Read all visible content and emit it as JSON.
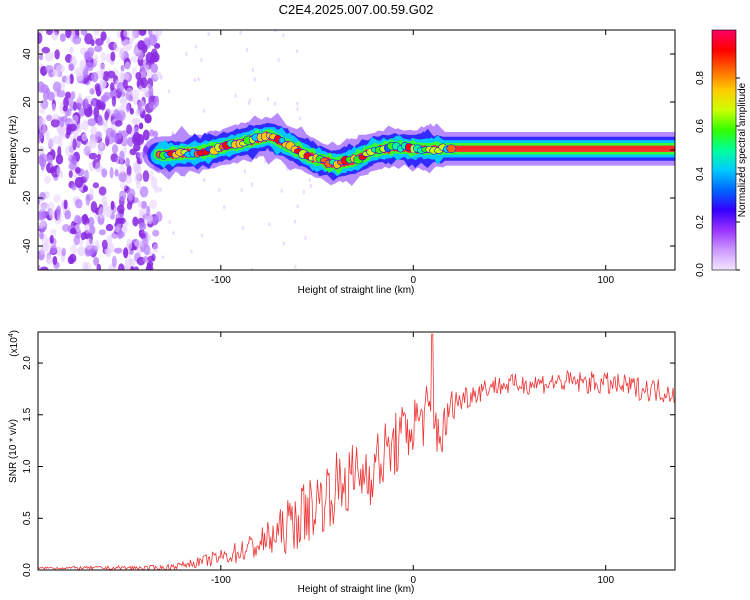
{
  "figure_title": "C2E4.2025.007.00.59.G02",
  "chart_data": [
    {
      "type": "heatmap",
      "name": "spectrogram",
      "xlabel": "Height of straight line (km)",
      "ylabel": "Frequency (Hz)",
      "xlim": [
        -195,
        136
      ],
      "ylim": [
        -50,
        50
      ],
      "x_ticks": [
        -100,
        0,
        100
      ],
      "y_ticks": [
        -40,
        -20,
        0,
        20,
        40
      ],
      "noise_region_x": [
        -195,
        -132
      ],
      "signal_region_x": [
        -132,
        136
      ],
      "ridge": {
        "x": [
          -132,
          -120,
          -110,
          -100,
          -90,
          -80,
          -75,
          -70,
          -65,
          -60,
          -55,
          -50,
          -45,
          -40,
          -35,
          -30,
          -25,
          -20,
          -15,
          -10,
          -5,
          0,
          10,
          20,
          50,
          100,
          136
        ],
        "y": [
          -2,
          -1.5,
          -1,
          1,
          3,
          5,
          6,
          4,
          2,
          0,
          -2,
          -4,
          -5,
          -6,
          -5,
          -4,
          -2,
          0,
          0.5,
          1,
          1,
          0.5,
          0.5,
          0.5,
          0.5,
          0.5,
          0.5
        ]
      },
      "colorbar": {
        "label": "Normalized spectral amplitude",
        "ticks": [
          0.0,
          0.2,
          0.4,
          0.6,
          0.8
        ],
        "range": [
          0,
          1
        ],
        "colormap": [
          "#f2e6ff",
          "#cc99ff",
          "#9933ff",
          "#3300ff",
          "#0066ff",
          "#00ccff",
          "#00ff99",
          "#33ff00",
          "#ccff00",
          "#ffcc00",
          "#ff6600",
          "#ff0000",
          "#ff0066"
        ]
      }
    },
    {
      "type": "line",
      "name": "snr",
      "xlabel": "Height of straight line (km)",
      "ylabel": "SNR (10 * v/v)",
      "y_scale_label": "(x10",
      "y_scale_exponent": "4",
      "xlim": [
        -195,
        136
      ],
      "ylim": [
        0,
        2.3
      ],
      "x_ticks": [
        -100,
        0,
        100
      ],
      "y_ticks": [
        "0.0",
        "0.5",
        "1.0",
        "1.5",
        "2.0"
      ],
      "color": "#ee3333",
      "envelope": {
        "x": [
          -195,
          -130,
          -120,
          -110,
          -100,
          -90,
          -80,
          -70,
          -60,
          -50,
          -40,
          -30,
          -20,
          -10,
          0,
          5,
          10,
          15,
          20,
          30,
          40,
          60,
          80,
          100,
          120,
          136
        ],
        "y": [
          0.02,
          0.02,
          0.05,
          0.08,
          0.12,
          0.18,
          0.25,
          0.35,
          0.5,
          0.65,
          0.8,
          0.9,
          1.0,
          1.2,
          1.4,
          1.5,
          1.45,
          1.3,
          1.6,
          1.7,
          1.78,
          1.8,
          1.82,
          1.8,
          1.75,
          1.72
        ]
      },
      "noise_amplitude": {
        "x": [
          -195,
          -120,
          -100,
          -80,
          -60,
          -40,
          -20,
          0,
          10,
          20,
          40,
          136
        ],
        "y": [
          0.01,
          0.03,
          0.08,
          0.15,
          0.3,
          0.35,
          0.35,
          0.3,
          0.35,
          0.15,
          0.1,
          0.12
        ]
      }
    }
  ]
}
